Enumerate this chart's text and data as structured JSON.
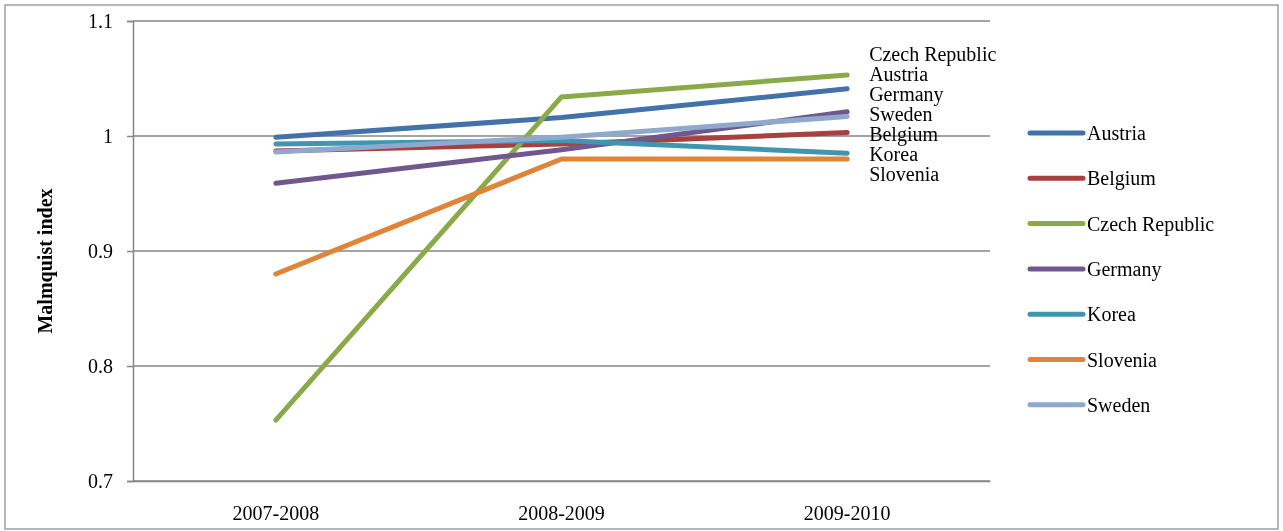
{
  "chart_data": {
    "type": "line",
    "ylabel": "Malmquist index",
    "categories": [
      "2007-2008",
      "2008-2009",
      "2009-2010"
    ],
    "series": [
      {
        "name": "Austria",
        "color": "#4371a9",
        "values": [
          0.999,
          1.016,
          1.041
        ]
      },
      {
        "name": "Belgium",
        "color": "#a9403e",
        "values": [
          0.987,
          0.993,
          1.003
        ]
      },
      {
        "name": "Czech Republic",
        "color": "#8aaa4a",
        "values": [
          0.753,
          1.034,
          1.053
        ]
      },
      {
        "name": "Germany",
        "color": "#71578f",
        "values": [
          0.959,
          0.988,
          1.021
        ]
      },
      {
        "name": "Korea",
        "color": "#4096af",
        "values": [
          0.993,
          0.996,
          0.985
        ]
      },
      {
        "name": "Slovenia",
        "color": "#e0843a",
        "values": [
          0.88,
          0.98,
          0.98
        ]
      },
      {
        "name": "Sweden",
        "color": "#8fa8ce",
        "values": [
          0.986,
          0.999,
          1.017
        ]
      }
    ],
    "annotations": [
      {
        "text": "Czech Republic",
        "x": "2009-2010",
        "y": 1.053
      },
      {
        "text": "Austria",
        "x": "2009-2010",
        "y": 1.041
      },
      {
        "text": "Germany",
        "x": "2009-2010",
        "y": 1.021
      },
      {
        "text": "Sweden",
        "x": "2009-2010",
        "y": 1.017
      },
      {
        "text": "Belgium",
        "x": "2009-2010",
        "y": 1.003
      },
      {
        "text": "Korea",
        "x": "2009-2010",
        "y": 0.985
      },
      {
        "text": "Slovenia",
        "x": "2009-2010",
        "y": 0.98
      }
    ],
    "ylim": [
      0.7,
      1.1
    ],
    "yticks": [
      0.7,
      0.8,
      0.9,
      1,
      1.1
    ],
    "grid": "y",
    "legend": "right"
  }
}
